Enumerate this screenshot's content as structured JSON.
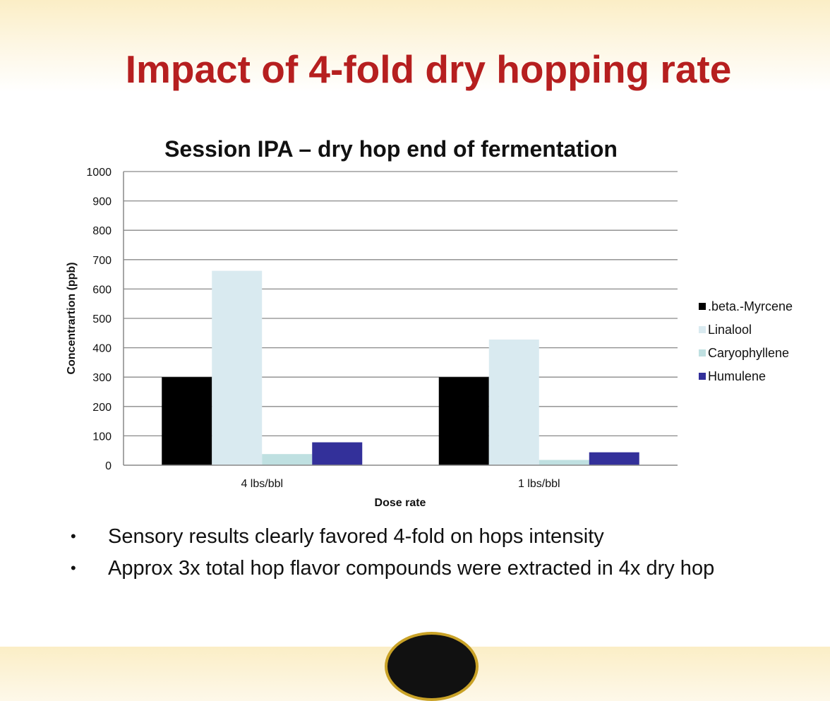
{
  "slide": {
    "title": "Impact of 4-fold dry hopping rate",
    "bullets": [
      "Sensory results clearly favored 4-fold on hops intensity",
      "Approx 3x total hop flavor compounds were extracted in 4x dry hop"
    ]
  },
  "chart_data": {
    "type": "bar",
    "title": "Session IPA – dry hop end of fermentation",
    "xlabel": "Dose rate",
    "ylabel": "Concentrartion (ppb)",
    "categories": [
      "4 lbs/bbl",
      "1 lbs/bbl"
    ],
    "ylim": [
      0,
      1000
    ],
    "yticks": [
      0,
      100,
      200,
      300,
      400,
      500,
      600,
      700,
      800,
      900,
      1000
    ],
    "grid": true,
    "legend_position": "right",
    "series": [
      {
        "name": ".beta.-Myrcene",
        "values": [
          300,
          300
        ],
        "color": "#000000"
      },
      {
        "name": "Linalool",
        "values": [
          662,
          428
        ],
        "color": "#d9eaf0"
      },
      {
        "name": "Caryophyllene",
        "values": [
          38,
          18
        ],
        "color": "#bfe0e1"
      },
      {
        "name": "Humulene",
        "values": [
          78,
          44
        ],
        "color": "#33309a"
      }
    ]
  }
}
